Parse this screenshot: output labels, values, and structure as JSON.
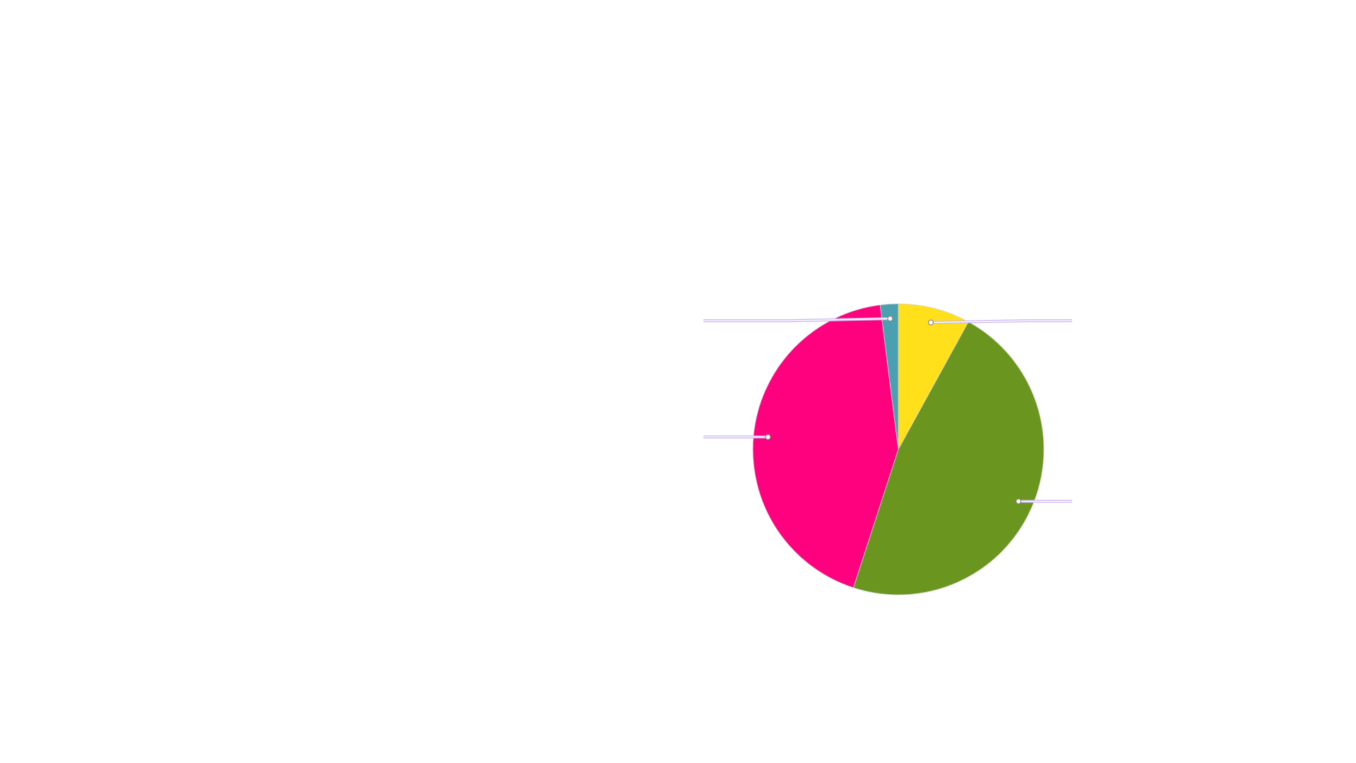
{
  "chart_data": {
    "type": "pie",
    "values": [
      8,
      47,
      43,
      2
    ],
    "colors": [
      "#ffe01b",
      "#6a961f",
      "#ff007f",
      "#4a9fb0"
    ]
  }
}
